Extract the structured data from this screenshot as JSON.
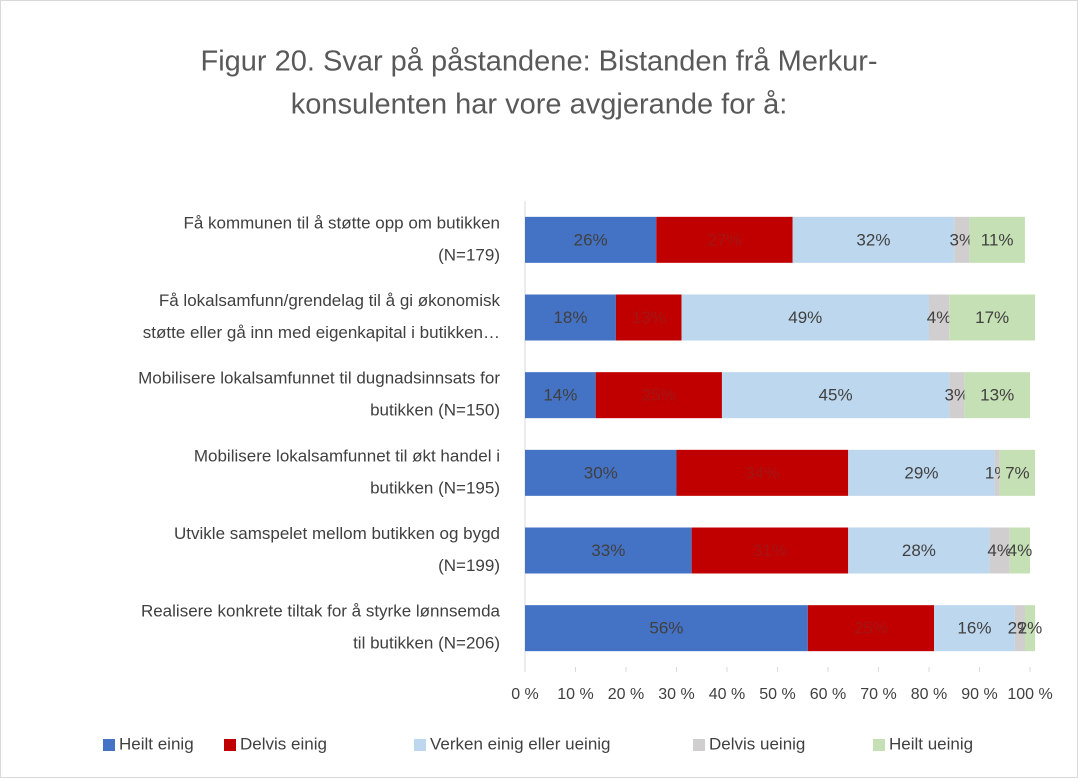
{
  "chart_data": {
    "type": "stacked_barh",
    "title": [
      "Figur 20. Svar på påstandene: Bistanden frå Merkur-",
      "konsulenten har vore avgjerande for å:"
    ],
    "categories": [
      [
        "Få kommunen til å støtte opp om butikken",
        "(N=179)"
      ],
      [
        "Få lokalsamfunn/grendelag til å gi økonomisk",
        "støtte eller gå inn med eigenkapital i butikken…"
      ],
      [
        "Mobilisere lokalsamfunnet til dugnadsinnsats for",
        "butikken (N=150)"
      ],
      [
        "Mobilisere lokalsamfunnet til økt handel i",
        "butikken (N=195)"
      ],
      [
        "Utvikle samspelet mellom butikken og bygd",
        "(N=199)"
      ],
      [
        "Realisere konkrete tiltak for å styrke lønnsemda",
        "til butikken (N=206)"
      ]
    ],
    "series": [
      {
        "name": "Heilt einig",
        "color": "#4472c4",
        "values": [
          26,
          18,
          14,
          30,
          33,
          56
        ],
        "value_labels": [
          "26%",
          "18%",
          "14%",
          "30%",
          "33%",
          "56%"
        ]
      },
      {
        "name": "Delvis einig",
        "color": "#c00000",
        "values": [
          27,
          13,
          25,
          34,
          31,
          25
        ],
        "value_labels": [
          "27%",
          "13%",
          "25%",
          "34%",
          "31%",
          "25%"
        ]
      },
      {
        "name": "Verken einig eller ueinig",
        "color": "#bdd7ee",
        "values": [
          32,
          49,
          45,
          29,
          28,
          16
        ],
        "value_labels": [
          "32%",
          "49%",
          "45%",
          "29%",
          "28%",
          "16%"
        ]
      },
      {
        "name": "Delvis ueinig",
        "color": "#d0cece",
        "values": [
          3,
          4,
          3,
          1,
          4,
          2
        ],
        "value_labels": [
          "3%",
          "4%",
          "3%",
          "1%",
          "4%",
          "2%"
        ]
      },
      {
        "name": "Heilt ueinig",
        "color": "#c5e0b4",
        "values": [
          11,
          17,
          13,
          7,
          4,
          2
        ],
        "value_labels": [
          "11%",
          "17%",
          "13%",
          "7%",
          "4%",
          "2%"
        ]
      }
    ],
    "xlim": [
      0,
      100
    ],
    "xticks": [
      {
        "value": 0,
        "label": "0 %"
      },
      {
        "value": 10,
        "label": "10 %"
      },
      {
        "value": 20,
        "label": "20 %"
      },
      {
        "value": 30,
        "label": "30 %"
      },
      {
        "value": 40,
        "label": "40 %"
      },
      {
        "value": 50,
        "label": "50 %"
      },
      {
        "value": 60,
        "label": "60 %"
      },
      {
        "value": 70,
        "label": "70 %"
      },
      {
        "value": 80,
        "label": "80 %"
      },
      {
        "value": 90,
        "label": "90 %"
      },
      {
        "value": 100,
        "label": "100 %"
      }
    ],
    "legend": "bottom"
  }
}
